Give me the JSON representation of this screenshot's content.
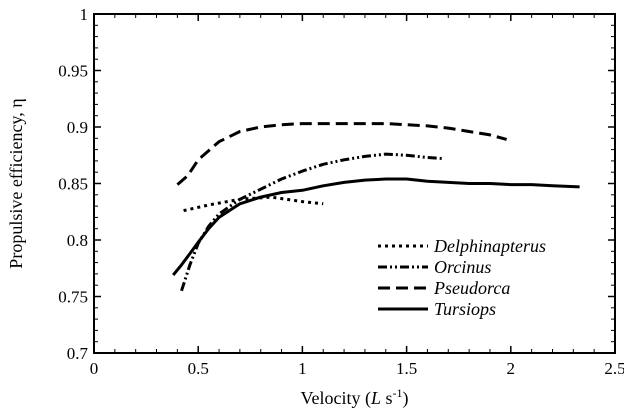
{
  "chart_data": {
    "type": "line",
    "xlabel": "Velocity (L s-1)",
    "xlabel_parts": {
      "pre": "Velocity (",
      "var": "L",
      "unit": " s",
      "sup": "-1",
      "post": ")"
    },
    "ylabel": "Propulsive efficiency, η",
    "xlim": [
      0,
      2.5
    ],
    "ylim": [
      0.7,
      1.0
    ],
    "xticks": [
      "0",
      "0.5",
      "1",
      "1.5",
      "2",
      "2.5"
    ],
    "xtick_values": [
      0,
      0.5,
      1,
      1.5,
      2,
      2.5
    ],
    "yticks": [
      "0.7",
      "0.75",
      "0.8",
      "0.85",
      "0.9",
      "0.95",
      "1"
    ],
    "ytick_values": [
      0.7,
      0.75,
      0.8,
      0.85,
      0.9,
      0.95,
      1.0
    ],
    "grid": false,
    "legend_position": "bottom-right",
    "series": [
      {
        "name": "Delphinapterus",
        "dash": "3,4",
        "x": [
          0.43,
          0.55,
          0.7,
          0.85,
          1.0,
          1.1
        ],
        "y": [
          0.826,
          0.831,
          0.836,
          0.838,
          0.834,
          0.832
        ]
      },
      {
        "name": "Orcinus",
        "dash": "9,3,2,3,2,3",
        "x": [
          0.42,
          0.46,
          0.5,
          0.55,
          0.6,
          0.7,
          0.8,
          0.9,
          1.0,
          1.1,
          1.2,
          1.3,
          1.4,
          1.5,
          1.6,
          1.68
        ],
        "y": [
          0.755,
          0.778,
          0.797,
          0.812,
          0.823,
          0.836,
          0.845,
          0.854,
          0.861,
          0.867,
          0.871,
          0.874,
          0.876,
          0.875,
          0.873,
          0.872
        ]
      },
      {
        "name": "Pseudorca",
        "dash": "12,6",
        "x": [
          0.4,
          0.45,
          0.5,
          0.6,
          0.7,
          0.8,
          0.9,
          1.0,
          1.2,
          1.4,
          1.5,
          1.6,
          1.7,
          1.8,
          1.9,
          1.98
        ],
        "y": [
          0.849,
          0.857,
          0.871,
          0.887,
          0.896,
          0.9,
          0.902,
          0.903,
          0.903,
          0.903,
          0.902,
          0.901,
          0.899,
          0.896,
          0.893,
          0.889
        ]
      },
      {
        "name": "Tursiops",
        "dash": "",
        "x": [
          0.38,
          0.42,
          0.46,
          0.5,
          0.55,
          0.6,
          0.7,
          0.8,
          0.9,
          1.0,
          1.1,
          1.2,
          1.3,
          1.4,
          1.5,
          1.6,
          1.7,
          1.8,
          1.9,
          2.0,
          2.1,
          2.2,
          2.33
        ],
        "y": [
          0.769,
          0.778,
          0.788,
          0.798,
          0.81,
          0.82,
          0.832,
          0.838,
          0.842,
          0.844,
          0.848,
          0.851,
          0.853,
          0.854,
          0.854,
          0.852,
          0.851,
          0.85,
          0.85,
          0.849,
          0.849,
          0.848,
          0.847
        ]
      }
    ]
  }
}
